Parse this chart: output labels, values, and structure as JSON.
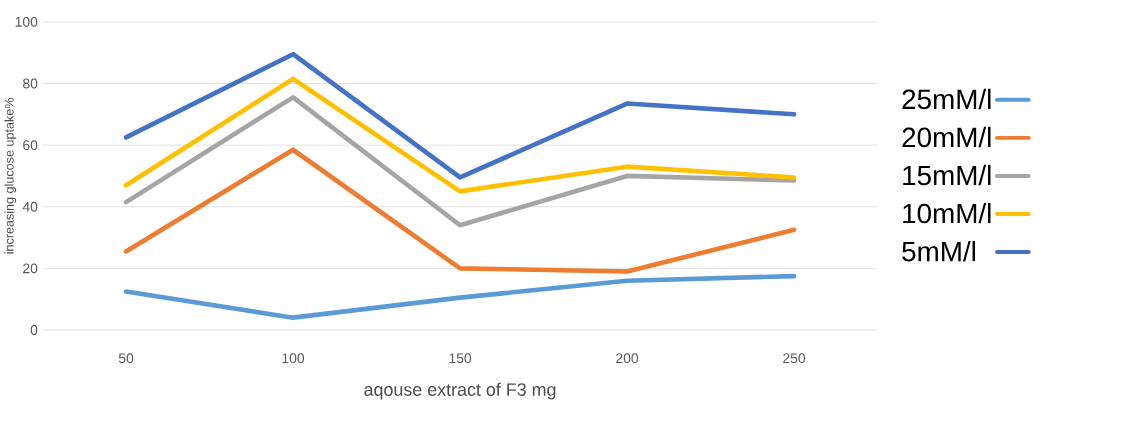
{
  "chart_data": {
    "type": "line",
    "xlabel": "aqouse extract of F3 mg",
    "ylabel": "increasing glucose uptake%",
    "categories": [
      "50",
      "100",
      "150",
      "200",
      "250"
    ],
    "series": [
      {
        "name": "25mM/l",
        "color": "#5b9bd5",
        "values": [
          12.5,
          4,
          10.5,
          16,
          17.5
        ]
      },
      {
        "name": "20mM/l",
        "color": "#ed7d31",
        "values": [
          25.5,
          58.5,
          20,
          19,
          32.5
        ]
      },
      {
        "name": "15mM/l",
        "color": "#a5a5a5",
        "values": [
          41.5,
          75.5,
          34,
          50,
          48.5
        ]
      },
      {
        "name": "10mM/l",
        "color": "#ffc000",
        "values": [
          47,
          81.5,
          45,
          53,
          49.5
        ]
      },
      {
        "name": "5mM/l",
        "color": "#4472c4",
        "values": [
          62.5,
          89.5,
          49.5,
          73.5,
          70
        ]
      }
    ],
    "ylim": [
      0,
      100
    ],
    "yticks": [
      0,
      20,
      40,
      60,
      80,
      100
    ],
    "grid": "y",
    "legend": "right",
    "marker": "none",
    "line_style": "solid"
  }
}
